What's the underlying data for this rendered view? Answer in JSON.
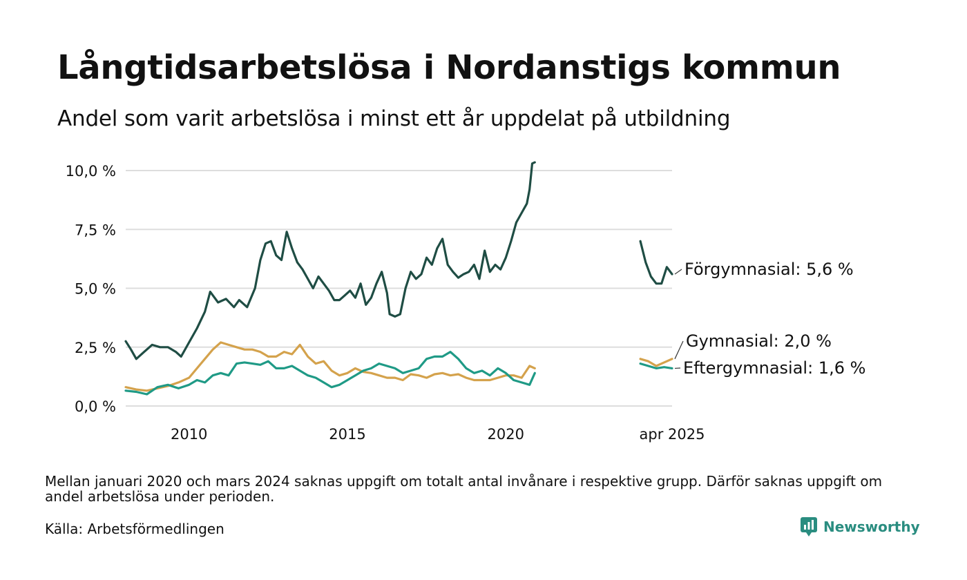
{
  "title": "Långtidsarbetslösa i Nordanstigs kommun",
  "subtitle": "Andel som varit arbetslösa i minst ett år uppdelat på utbildning",
  "note": "Mellan januari 2020 och mars 2024 saknas uppgift om totalt antal invånare i respektive grupp. Därför saknas uppgift om andel arbetslösa under perioden.",
  "source": "Källa: Arbetsförmedlingen",
  "brand": "Newsworthy",
  "chart_data": {
    "type": "line",
    "title": "Långtidsarbetslösa i Nordanstigs kommun",
    "subtitle": "Andel som varit arbetslösa i minst ett år uppdelat på utbildning",
    "x_axis": {
      "type": "date",
      "range": [
        "2008-01",
        "2025-04"
      ],
      "tick_labels": [
        "2010",
        "2015",
        "2020",
        "apr 2025"
      ],
      "tick_positions": [
        "2010-01",
        "2015-01",
        "2020-01",
        "2025-04"
      ]
    },
    "y_axis": {
      "range": [
        0,
        10.5
      ],
      "ticks": [
        0,
        2.5,
        5,
        7.5,
        10
      ],
      "tick_labels": [
        "0,0 %",
        "2,5 %",
        "5,0 %",
        "7,5 %",
        "10,0 %"
      ],
      "grid": true
    },
    "legend": "none (end labels)",
    "series": [
      {
        "name": "Förgymnasial",
        "color": "#1f4d44",
        "end_label": "Förgymnasial: 5,6 %",
        "segments": [
          [
            [
              "2008-01",
              2.75
            ],
            [
              "2008-03",
              2.4
            ],
            [
              "2008-05",
              2.0
            ],
            [
              "2008-08",
              2.3
            ],
            [
              "2008-11",
              2.6
            ],
            [
              "2009-02",
              2.5
            ],
            [
              "2009-05",
              2.5
            ],
            [
              "2009-08",
              2.3
            ],
            [
              "2009-10",
              2.1
            ],
            [
              "2010-01",
              2.7
            ],
            [
              "2010-04",
              3.3
            ],
            [
              "2010-07",
              4.0
            ],
            [
              "2010-09",
              4.85
            ],
            [
              "2010-12",
              4.4
            ],
            [
              "2011-03",
              4.55
            ],
            [
              "2011-06",
              4.2
            ],
            [
              "2011-08",
              4.5
            ],
            [
              "2011-11",
              4.2
            ],
            [
              "2012-02",
              5.0
            ],
            [
              "2012-04",
              6.2
            ],
            [
              "2012-06",
              6.9
            ],
            [
              "2012-08",
              7.0
            ],
            [
              "2012-10",
              6.4
            ],
            [
              "2012-12",
              6.2
            ],
            [
              "2013-02",
              7.4
            ],
            [
              "2013-04",
              6.7
            ],
            [
              "2013-06",
              6.1
            ],
            [
              "2013-08",
              5.8
            ],
            [
              "2013-10",
              5.4
            ],
            [
              "2013-12",
              5.0
            ],
            [
              "2014-02",
              5.5
            ],
            [
              "2014-04",
              5.2
            ],
            [
              "2014-06",
              4.9
            ],
            [
              "2014-08",
              4.5
            ],
            [
              "2014-10",
              4.5
            ],
            [
              "2014-12",
              4.7
            ],
            [
              "2015-02",
              4.9
            ],
            [
              "2015-04",
              4.6
            ],
            [
              "2015-06",
              5.2
            ],
            [
              "2015-08",
              4.3
            ],
            [
              "2015-10",
              4.6
            ],
            [
              "2015-12",
              5.2
            ],
            [
              "2016-02",
              5.7
            ],
            [
              "2016-04",
              4.8
            ],
            [
              "2016-05",
              3.9
            ],
            [
              "2016-07",
              3.8
            ],
            [
              "2016-09",
              3.9
            ],
            [
              "2016-11",
              5.0
            ],
            [
              "2017-01",
              5.7
            ],
            [
              "2017-03",
              5.4
            ],
            [
              "2017-05",
              5.6
            ],
            [
              "2017-07",
              6.3
            ],
            [
              "2017-09",
              6.0
            ],
            [
              "2017-11",
              6.7
            ],
            [
              "2018-01",
              7.1
            ],
            [
              "2018-03",
              6.0
            ],
            [
              "2018-05",
              5.7
            ],
            [
              "2018-07",
              5.45
            ],
            [
              "2018-09",
              5.6
            ],
            [
              "2018-11",
              5.7
            ],
            [
              "2019-01",
              6.0
            ],
            [
              "2019-03",
              5.4
            ],
            [
              "2019-05",
              6.6
            ],
            [
              "2019-07",
              5.7
            ],
            [
              "2019-09",
              6.0
            ],
            [
              "2019-11",
              5.8
            ],
            [
              "2020-01",
              6.3
            ],
            [
              "2020-03",
              7.0
            ],
            [
              "2020-05",
              7.8
            ],
            [
              "2020-07",
              8.2
            ],
            [
              "2020-09",
              8.6
            ],
            [
              "2020-10",
              9.2
            ],
            [
              "2020-11",
              10.3
            ],
            [
              "2020-12",
              10.35
            ]
          ],
          [
            [
              "2024-04",
              7.0
            ],
            [
              "2024-06",
              6.1
            ],
            [
              "2024-08",
              5.5
            ],
            [
              "2024-10",
              5.2
            ],
            [
              "2024-12",
              5.2
            ],
            [
              "2025-02",
              5.9
            ],
            [
              "2025-04",
              5.6
            ]
          ]
        ]
      },
      {
        "name": "Gymnasial",
        "color": "#d4a24c",
        "end_label": "Gymnasial: 2,0 %",
        "segments": [
          [
            [
              "2008-01",
              0.8
            ],
            [
              "2008-05",
              0.7
            ],
            [
              "2008-09",
              0.65
            ],
            [
              "2009-01",
              0.75
            ],
            [
              "2009-05",
              0.85
            ],
            [
              "2009-09",
              1.0
            ],
            [
              "2010-01",
              1.2
            ],
            [
              "2010-04",
              1.6
            ],
            [
              "2010-07",
              2.0
            ],
            [
              "2010-10",
              2.4
            ],
            [
              "2011-01",
              2.7
            ],
            [
              "2011-04",
              2.6
            ],
            [
              "2011-07",
              2.5
            ],
            [
              "2011-10",
              2.4
            ],
            [
              "2012-01",
              2.4
            ],
            [
              "2012-04",
              2.3
            ],
            [
              "2012-07",
              2.1
            ],
            [
              "2012-10",
              2.1
            ],
            [
              "2013-01",
              2.3
            ],
            [
              "2013-04",
              2.2
            ],
            [
              "2013-07",
              2.6
            ],
            [
              "2013-10",
              2.1
            ],
            [
              "2014-01",
              1.8
            ],
            [
              "2014-04",
              1.9
            ],
            [
              "2014-07",
              1.5
            ],
            [
              "2014-10",
              1.3
            ],
            [
              "2015-01",
              1.4
            ],
            [
              "2015-04",
              1.6
            ],
            [
              "2015-07",
              1.45
            ],
            [
              "2015-10",
              1.4
            ],
            [
              "2016-01",
              1.3
            ],
            [
              "2016-04",
              1.2
            ],
            [
              "2016-07",
              1.2
            ],
            [
              "2016-10",
              1.1
            ],
            [
              "2017-01",
              1.35
            ],
            [
              "2017-04",
              1.3
            ],
            [
              "2017-07",
              1.2
            ],
            [
              "2017-10",
              1.35
            ],
            [
              "2018-01",
              1.4
            ],
            [
              "2018-04",
              1.3
            ],
            [
              "2018-07",
              1.35
            ],
            [
              "2018-10",
              1.2
            ],
            [
              "2019-01",
              1.1
            ],
            [
              "2019-04",
              1.1
            ],
            [
              "2019-07",
              1.1
            ],
            [
              "2019-10",
              1.2
            ],
            [
              "2020-01",
              1.3
            ],
            [
              "2020-04",
              1.3
            ],
            [
              "2020-07",
              1.2
            ],
            [
              "2020-10",
              1.7
            ],
            [
              "2020-12",
              1.6
            ]
          ],
          [
            [
              "2024-04",
              2.0
            ],
            [
              "2024-07",
              1.9
            ],
            [
              "2024-10",
              1.7
            ],
            [
              "2025-01",
              1.85
            ],
            [
              "2025-04",
              2.0
            ]
          ]
        ]
      },
      {
        "name": "Eftergymnasial",
        "color": "#1f9a86",
        "end_label": "Eftergymnasial: 1,6 %",
        "segments": [
          [
            [
              "2008-01",
              0.65
            ],
            [
              "2008-05",
              0.6
            ],
            [
              "2008-09",
              0.5
            ],
            [
              "2009-01",
              0.8
            ],
            [
              "2009-05",
              0.9
            ],
            [
              "2009-09",
              0.75
            ],
            [
              "2010-01",
              0.9
            ],
            [
              "2010-04",
              1.1
            ],
            [
              "2010-07",
              1.0
            ],
            [
              "2010-10",
              1.3
            ],
            [
              "2011-01",
              1.4
            ],
            [
              "2011-04",
              1.3
            ],
            [
              "2011-07",
              1.8
            ],
            [
              "2011-10",
              1.85
            ],
            [
              "2012-01",
              1.8
            ],
            [
              "2012-04",
              1.75
            ],
            [
              "2012-07",
              1.9
            ],
            [
              "2012-10",
              1.6
            ],
            [
              "2013-01",
              1.6
            ],
            [
              "2013-04",
              1.7
            ],
            [
              "2013-07",
              1.5
            ],
            [
              "2013-10",
              1.3
            ],
            [
              "2014-01",
              1.2
            ],
            [
              "2014-04",
              1.0
            ],
            [
              "2014-07",
              0.8
            ],
            [
              "2014-10",
              0.9
            ],
            [
              "2015-01",
              1.1
            ],
            [
              "2015-04",
              1.3
            ],
            [
              "2015-07",
              1.5
            ],
            [
              "2015-10",
              1.6
            ],
            [
              "2016-01",
              1.8
            ],
            [
              "2016-04",
              1.7
            ],
            [
              "2016-07",
              1.6
            ],
            [
              "2016-10",
              1.4
            ],
            [
              "2017-01",
              1.5
            ],
            [
              "2017-04",
              1.6
            ],
            [
              "2017-07",
              2.0
            ],
            [
              "2017-10",
              2.1
            ],
            [
              "2018-01",
              2.1
            ],
            [
              "2018-04",
              2.3
            ],
            [
              "2018-07",
              2.0
            ],
            [
              "2018-10",
              1.6
            ],
            [
              "2019-01",
              1.4
            ],
            [
              "2019-04",
              1.5
            ],
            [
              "2019-07",
              1.3
            ],
            [
              "2019-10",
              1.6
            ],
            [
              "2020-01",
              1.4
            ],
            [
              "2020-04",
              1.1
            ],
            [
              "2020-07",
              1.0
            ],
            [
              "2020-10",
              0.9
            ],
            [
              "2020-12",
              1.4
            ]
          ],
          [
            [
              "2024-04",
              1.8
            ],
            [
              "2024-07",
              1.7
            ],
            [
              "2024-10",
              1.6
            ],
            [
              "2025-01",
              1.65
            ],
            [
              "2025-04",
              1.6
            ]
          ]
        ]
      }
    ]
  }
}
